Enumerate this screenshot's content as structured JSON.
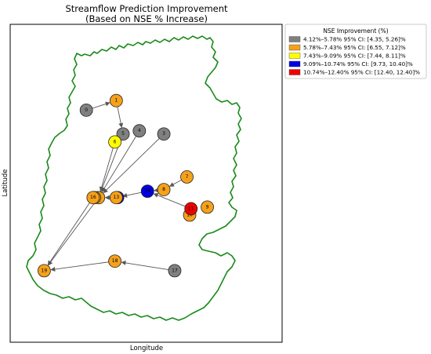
{
  "chart_data": {
    "type": "scatter",
    "title": "Streamflow Prediction Improvement",
    "subtitle": "(Based on NSE % Increase)",
    "xlabel": "Longitude",
    "ylabel": "Latitude",
    "grid": false,
    "ticks": false,
    "legend": {
      "title": "NSE Improvement (%)",
      "placement": "outside-right-top",
      "entries": [
        {
          "label": "4.12%–5.78%  95% CI: [4.35, 5.26]%",
          "color": "#808080"
        },
        {
          "label": "5.78%–7.43%  95% CI: [6.55, 7.12]%",
          "color": "#f5a11a"
        },
        {
          "label": "7.43%–9.09%  95% CI: [7.44, 8.11]%",
          "color": "#ffff00"
        },
        {
          "label": "9.09%–10.74%  95% CI: [9.73, 10.40]%",
          "color": "#0000e0"
        },
        {
          "label": "10.74%–12.40%  95% CI: [12.40, 12.40]%",
          "color": "#ee0000"
        }
      ]
    },
    "boundary_color": "#1a8a1a",
    "arrow_color": "#555555",
    "stations": [
      {
        "id": "0",
        "x": 0.28,
        "y": 0.73,
        "class": 0
      },
      {
        "id": "1",
        "x": 0.39,
        "y": 0.76,
        "class": 1
      },
      {
        "id": "2",
        "x": 0.325,
        "y": 0.455,
        "class": 1
      },
      {
        "id": "3",
        "x": 0.565,
        "y": 0.655,
        "class": 0
      },
      {
        "id": "4",
        "x": 0.475,
        "y": 0.665,
        "class": 0
      },
      {
        "id": "5",
        "x": 0.415,
        "y": 0.655,
        "class": 0
      },
      {
        "id": "6",
        "x": 0.385,
        "y": 0.63,
        "class": 2
      },
      {
        "id": "7",
        "x": 0.65,
        "y": 0.52,
        "class": 1
      },
      {
        "id": "8",
        "x": 0.565,
        "y": 0.48,
        "class": 1
      },
      {
        "id": "9",
        "x": 0.725,
        "y": 0.425,
        "class": 1
      },
      {
        "id": "10",
        "x": 0.66,
        "y": 0.4,
        "class": 1
      },
      {
        "id": "11",
        "x": 0.665,
        "y": 0.42,
        "class": 4
      },
      {
        "id": "12",
        "x": 0.395,
        "y": 0.455,
        "class": 3
      },
      {
        "id": "13",
        "x": 0.39,
        "y": 0.455,
        "class": 1
      },
      {
        "id": "14",
        "x": 0.505,
        "y": 0.475,
        "class": 3
      },
      {
        "id": "15",
        "x": 0.31,
        "y": 0.455,
        "class": 1
      },
      {
        "id": "16",
        "x": 0.305,
        "y": 0.455,
        "class": 1
      },
      {
        "id": "17",
        "x": 0.605,
        "y": 0.225,
        "class": 0
      },
      {
        "id": "18",
        "x": 0.385,
        "y": 0.255,
        "class": 1
      },
      {
        "id": "19",
        "x": 0.125,
        "y": 0.225,
        "class": 1
      }
    ],
    "arrows": [
      {
        "from": "0",
        "to": "1"
      },
      {
        "from": "1",
        "to": "5"
      },
      {
        "from": "5",
        "to": "2"
      },
      {
        "from": "4",
        "to": "2"
      },
      {
        "from": "3",
        "to": "2"
      },
      {
        "from": "6",
        "to": "2"
      },
      {
        "from": "7",
        "to": "8"
      },
      {
        "from": "8",
        "to": "14"
      },
      {
        "from": "11",
        "to": "14"
      },
      {
        "from": "14",
        "to": "13"
      },
      {
        "from": "13",
        "to": "2"
      },
      {
        "from": "2",
        "to": "19"
      },
      {
        "from": "16",
        "to": "19"
      },
      {
        "from": "17",
        "to": "18"
      },
      {
        "from": "18",
        "to": "19"
      }
    ]
  }
}
